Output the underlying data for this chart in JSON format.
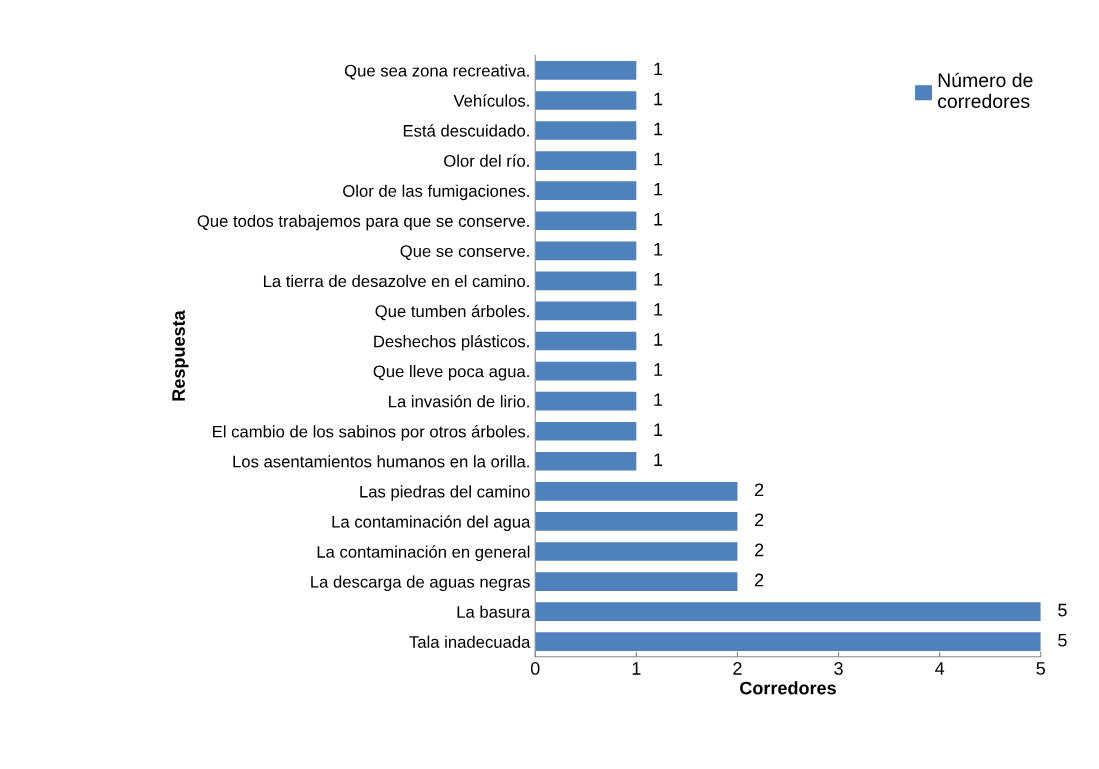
{
  "chart_data": {
    "type": "bar",
    "orientation": "horizontal",
    "xlabel": "Corredores",
    "ylabel": "Respuesta",
    "categories": [
      "Que sea zona recreativa.",
      "Vehículos.",
      "Está descuidado.",
      "Olor del río.",
      "Olor de las fumigaciones.",
      "Que todos trabajemos para que se conserve.",
      "Que se conserve.",
      "La tierra de desazolve en el camino.",
      "Que tumben árboles.",
      "Deshechos plásticos.",
      "Que lleve poca agua.",
      "La invasión de lirio.",
      "El cambio de los sabinos por otros árboles.",
      "Los asentamientos humanos en la orilla.",
      "Las piedras del camino",
      "La contaminación del agua",
      "La contaminación en general",
      "La descarga de aguas negras",
      "La basura",
      "Tala inadecuada"
    ],
    "series": [
      {
        "name": "Número de\ncorredores",
        "color": "#4f81bd",
        "values": [
          1,
          1,
          1,
          1,
          1,
          1,
          1,
          1,
          1,
          1,
          1,
          1,
          1,
          1,
          2,
          2,
          2,
          2,
          5,
          5
        ]
      }
    ],
    "xlim": [
      0,
      5
    ],
    "xticks": [
      0,
      1,
      2,
      3,
      4,
      5
    ],
    "data_labels": true,
    "legend": "top right",
    "grid": false
  }
}
